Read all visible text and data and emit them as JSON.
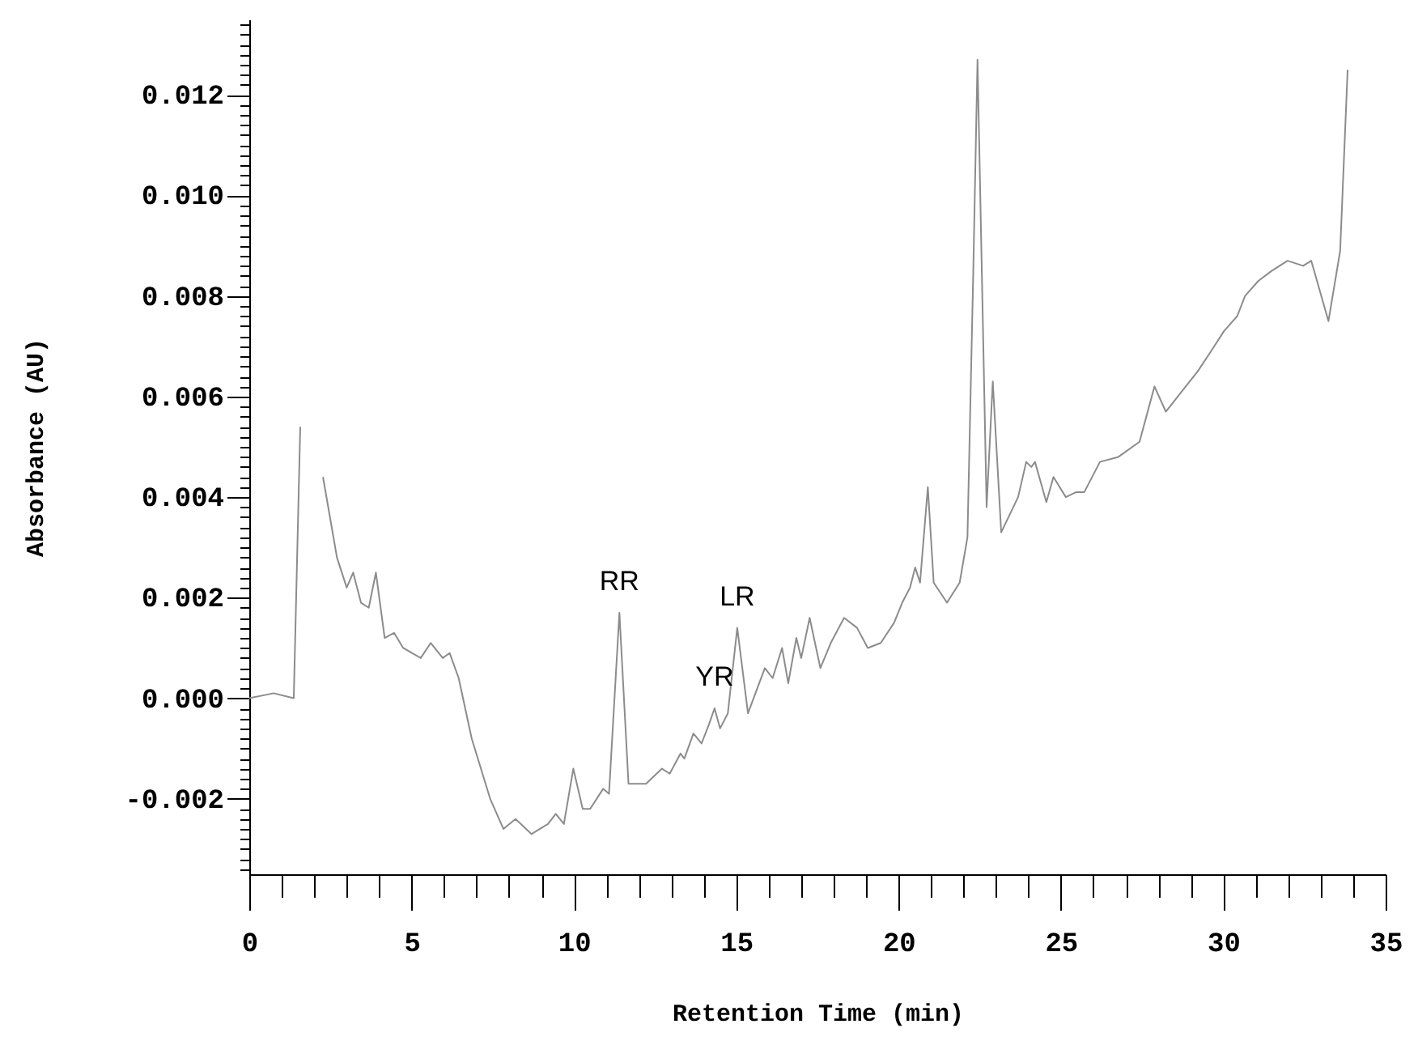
{
  "chart_data": {
    "type": "line",
    "xlabel": "Retention Time (min)",
    "ylabel": "Absorbance (AU)",
    "x": [
      0,
      0.75,
      1.37,
      1.57,
      1.8,
      2.27,
      2.7,
      3.0,
      3.2,
      3.44,
      3.68,
      3.9,
      4.17,
      4.46,
      4.74,
      5.28,
      5.59,
      5.96,
      6.17,
      6.45,
      6.85,
      7.42,
      7.83,
      8.2,
      8.69,
      9.2,
      9.44,
      9.69,
      9.98,
      10.27,
      10.5,
      10.9,
      11.08,
      11.4,
      11.68,
      12.22,
      12.71,
      12.95,
      13.28,
      13.4,
      13.68,
      13.93,
      14.17,
      14.33,
      14.5,
      14.74,
      15.03,
      15.36,
      15.88,
      16.12,
      16.41,
      16.6,
      16.85,
      17.0,
      17.26,
      17.59,
      17.91,
      18.32,
      18.72,
      19.05,
      19.45,
      19.86,
      20.11,
      20.35,
      20.51,
      20.66,
      20.9,
      21.08,
      21.49,
      21.88,
      22.12,
      22.3,
      22.43,
      22.71,
      22.9,
      23.16,
      23.68,
      23.93,
      24.09,
      24.2,
      24.55,
      24.77,
      25.15,
      25.47,
      25.72,
      26.2,
      26.77,
      27.42,
      27.88,
      28.23,
      28.72,
      29.21,
      29.62,
      30.02,
      30.43,
      30.67,
      31.08,
      31.49,
      31.98,
      32.46,
      32.71,
      33.24,
      33.6,
      33.83
    ],
    "series": [
      {
        "color": "#8c8c8c",
        "values": [
          0,
          0.0001,
          0,
          0.0054,
          null,
          0.0044,
          0.0028,
          0.0022,
          0.0025,
          0.0019,
          0.0018,
          0.0025,
          0.0012,
          0.0013,
          0.001,
          0.0008,
          0.0011,
          0.0008,
          0.0009,
          0.0004,
          -0.0008,
          -0.002,
          -0.0026,
          -0.0024,
          -0.0027,
          -0.0025,
          -0.0023,
          -0.0025,
          -0.0014,
          -0.0022,
          -0.0022,
          -0.0018,
          -0.0019,
          0.0017,
          -0.0017,
          -0.0017,
          -0.0014,
          -0.0015,
          -0.0011,
          -0.0012,
          -0.0007,
          -0.0009,
          -0.0005,
          -0.0002,
          -0.0006,
          -0.0003,
          0.0014,
          -0.0003,
          0.0006,
          0.0004,
          0.001,
          0.0003,
          0.0012,
          0.0008,
          0.0016,
          0.0006,
          0.0011,
          0.0016,
          0.0014,
          0.001,
          0.0011,
          0.0015,
          0.0019,
          0.0022,
          0.0026,
          0.0023,
          0.0042,
          0.0023,
          0.0019,
          0.0023,
          0.0032,
          0.0085,
          0.0127,
          0.0038,
          0.0063,
          0.0033,
          0.004,
          0.0047,
          0.0046,
          0.0047,
          0.0039,
          0.0044,
          0.004,
          0.0041,
          0.0041,
          0.0047,
          0.0048,
          0.0051,
          0.0062,
          0.0057,
          0.0061,
          0.0065,
          0.0069,
          0.0073,
          0.0076,
          0.008,
          0.0083,
          0.0085,
          0.0087,
          0.0086,
          0.0087,
          0.0075,
          0.0089,
          0.0125
        ]
      }
    ],
    "xlim": [
      0,
      35
    ],
    "xticks": [
      0,
      {
        "value": 1,
        "label": null
      },
      {
        "value": 2,
        "label": null
      },
      {
        "value": 3,
        "label": null
      },
      {
        "value": 4,
        "label": null
      },
      5,
      {
        "value": 6,
        "label": null
      },
      {
        "value": 7,
        "label": null
      },
      {
        "value": 8,
        "label": null
      },
      {
        "value": 9,
        "label": null
      },
      10,
      {
        "value": 11,
        "label": null
      },
      {
        "value": 12,
        "label": null
      },
      {
        "value": 13,
        "label": null
      },
      {
        "value": 14,
        "label": null
      },
      15,
      {
        "value": 16,
        "label": null
      },
      {
        "value": 17,
        "label": null
      },
      {
        "value": 18,
        "label": null
      },
      {
        "value": 19,
        "label": null
      },
      20,
      {
        "value": 21,
        "label": null
      },
      {
        "value": 22,
        "label": null
      },
      {
        "value": 23,
        "label": null
      },
      {
        "value": 24,
        "label": null
      },
      25,
      {
        "value": 26,
        "label": null
      },
      {
        "value": 27,
        "label": null
      },
      {
        "value": 28,
        "label": null
      },
      {
        "value": 29,
        "label": null
      },
      30,
      {
        "value": 31,
        "label": null
      },
      {
        "value": 32,
        "label": null
      },
      {
        "value": 33,
        "label": null
      },
      {
        "value": 34,
        "label": null
      },
      35
    ],
    "ylim": [
      -0.0035,
      0.0135
    ],
    "yticks": [
      {
        "value": -0.0034,
        "label": null
      },
      {
        "value": -0.0032,
        "label": null
      },
      {
        "value": -0.003,
        "label": null
      },
      {
        "value": -0.0028,
        "label": null
      },
      {
        "value": -0.0026,
        "label": null
      },
      {
        "value": -0.0024,
        "label": null
      },
      {
        "value": -0.0022,
        "label": null
      },
      -0.002,
      {
        "value": -0.0018,
        "label": null
      },
      {
        "value": -0.0016,
        "label": null
      },
      {
        "value": -0.0014,
        "label": null
      },
      {
        "value": -0.0012,
        "label": null
      },
      {
        "value": -0.001,
        "label": null
      },
      {
        "value": -0.0008,
        "label": null
      },
      {
        "value": -0.0006,
        "label": null
      },
      {
        "value": -0.0004,
        "label": null
      },
      {
        "value": -0.0002,
        "label": null
      },
      {
        "value": 0,
        "label": "0.000"
      },
      {
        "value": 0.0002,
        "label": null
      },
      {
        "value": 0.0004,
        "label": null
      },
      {
        "value": 0.0006,
        "label": null
      },
      {
        "value": 0.0008,
        "label": null
      },
      {
        "value": 0.001,
        "label": null
      },
      {
        "value": 0.0012,
        "label": null
      },
      {
        "value": 0.0014,
        "label": null
      },
      {
        "value": 0.0016,
        "label": null
      },
      {
        "value": 0.0018,
        "label": null
      },
      0.002,
      {
        "value": 0.0022,
        "label": null
      },
      {
        "value": 0.0024,
        "label": null
      },
      {
        "value": 0.0026,
        "label": null
      },
      {
        "value": 0.0028,
        "label": null
      },
      {
        "value": 0.003,
        "label": null
      },
      {
        "value": 0.0032,
        "label": null
      },
      {
        "value": 0.0034,
        "label": null
      },
      {
        "value": 0.0036,
        "label": null
      },
      {
        "value": 0.0038,
        "label": null
      },
      0.004,
      {
        "value": 0.0042,
        "label": null
      },
      {
        "value": 0.0044,
        "label": null
      },
      {
        "value": 0.0046,
        "label": null
      },
      {
        "value": 0.0048,
        "label": null
      },
      {
        "value": 0.005,
        "label": null
      },
      {
        "value": 0.0052,
        "label": null
      },
      {
        "value": 0.0054,
        "label": null
      },
      {
        "value": 0.0056,
        "label": null
      },
      {
        "value": 0.0058,
        "label": null
      },
      0.006,
      {
        "value": 0.0062,
        "label": null
      },
      {
        "value": 0.0064,
        "label": null
      },
      {
        "value": 0.0066,
        "label": null
      },
      {
        "value": 0.0068,
        "label": null
      },
      {
        "value": 0.007,
        "label": null
      },
      {
        "value": 0.0072,
        "label": null
      },
      {
        "value": 0.0074,
        "label": null
      },
      {
        "value": 0.0076,
        "label": null
      },
      {
        "value": 0.0078,
        "label": null
      },
      0.008,
      {
        "value": 0.0082,
        "label": null
      },
      {
        "value": 0.0084,
        "label": null
      },
      {
        "value": 0.0086,
        "label": null
      },
      {
        "value": 0.0088,
        "label": null
      },
      {
        "value": 0.01,
        "label": "0.010"
      },
      {
        "value": 0.009,
        "label": null
      },
      {
        "value": 0.0092,
        "label": null
      },
      {
        "value": 0.0094,
        "label": null
      },
      {
        "value": 0.0096,
        "label": null
      },
      {
        "value": 0.0098,
        "label": null
      },
      {
        "value": 0.0102,
        "label": null
      },
      {
        "value": 0.0104,
        "label": null
      },
      {
        "value": 0.0106,
        "label": null
      },
      {
        "value": 0.0108,
        "label": null
      },
      {
        "value": 0.011,
        "label": null
      },
      {
        "value": 0.0112,
        "label": null
      },
      {
        "value": 0.0114,
        "label": null
      },
      {
        "value": 0.0116,
        "label": null
      },
      {
        "value": 0.0118,
        "label": null
      },
      0.012,
      {
        "value": 0.0122,
        "label": null
      },
      {
        "value": 0.0124,
        "label": null
      },
      {
        "value": 0.0126,
        "label": null
      },
      {
        "value": 0.0128,
        "label": null
      },
      {
        "value": 0.013,
        "label": null
      },
      {
        "value": 0.0132,
        "label": null
      },
      {
        "value": 0.0134,
        "label": null
      }
    ],
    "annotations": [
      {
        "text": "RR",
        "x": 11.4,
        "y": 0.0017
      },
      {
        "text": "YR",
        "x": 14.33,
        "y": -0.0002
      },
      {
        "text": "LR",
        "x": 15.03,
        "y": 0.0014
      }
    ]
  }
}
